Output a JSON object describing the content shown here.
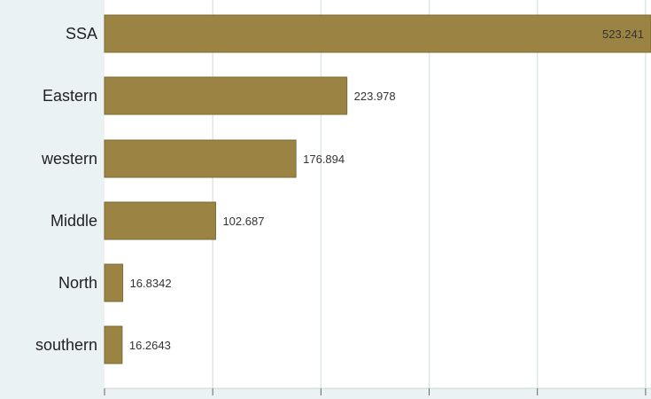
{
  "chart_data": {
    "type": "bar",
    "orientation": "horizontal",
    "categories": [
      "SSA",
      "Eastern",
      "western",
      "Middle",
      "North",
      "southern"
    ],
    "values": [
      523.241,
      223.978,
      176.894,
      102.687,
      16.8342,
      16.2643
    ],
    "value_labels": [
      "523.241",
      "223.978",
      "176.894",
      "102.687",
      "16.8342",
      "16.2643"
    ],
    "xlim": [
      0,
      500
    ],
    "grid": true,
    "colors": {
      "bar": "#9b8443",
      "bar_edge": "#7c6a33",
      "plot_bg": "#ffffff",
      "outer_bg": "#eaf2f3",
      "grid": "#dde6e8"
    }
  }
}
